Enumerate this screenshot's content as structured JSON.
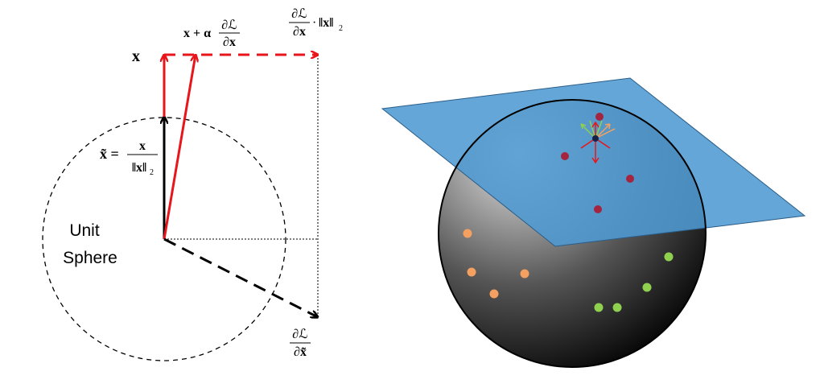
{
  "left_diagram": {
    "x_label": "x",
    "update_label": {
      "lhs": "x + α",
      "num": "∂ℒ",
      "den": "∂x"
    },
    "scaled_grad_label": {
      "num": "∂ℒ",
      "den": "∂x",
      "dot": "·",
      "norm": "‖x‖",
      "sub": "2"
    },
    "normalized_label": {
      "lhs": "x̃ =",
      "num": "x",
      "den": "‖x‖",
      "sub": "2"
    },
    "sphere_label": [
      "Unit",
      "Sphere"
    ],
    "tilde_grad_label": {
      "num": "∂ℒ",
      "den": "∂x̃"
    }
  }
}
